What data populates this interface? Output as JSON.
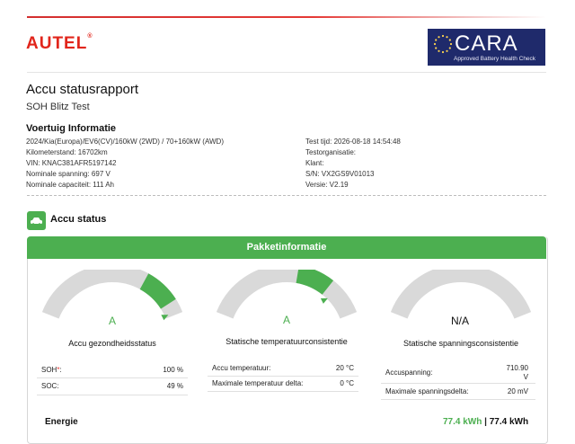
{
  "brand": {
    "logo_text": "AUTEL",
    "logo_mark": "®"
  },
  "badge": {
    "name": "CARA",
    "tagline": "Approved Battery Health Check"
  },
  "report": {
    "title": "Accu statusrapport",
    "subtitle": "SOH Blitz Test"
  },
  "vehicle": {
    "heading": "Voertuig Informatie",
    "left": [
      "2024/Kia(Europa)/EV6(CV)/160kW (2WD) / 70+160kW (AWD)",
      "Kilometerstand: 16702km",
      "VIN: KNAC381AFR5197142",
      "Nominale spanning: 697 V",
      "Nominale capaciteit: 111 Ah"
    ],
    "right": [
      "Test tijd: 2026-08-18 14:54:48",
      "Testorganisatie:",
      "Klant:",
      "S/N: VX2GS9V01013",
      "Versie: V2.19"
    ]
  },
  "accu_status": {
    "label": "Accu status",
    "icon": "battery-car-icon"
  },
  "pakket": {
    "header": "Pakketinformatie"
  },
  "gauges": [
    {
      "value": "A",
      "label": "Accu gezondheidsstatus",
      "level": 0.92
    },
    {
      "value": "A",
      "label": "Statische temperatuurconsistentie",
      "level": 0.78
    },
    {
      "value": "N/A",
      "label": "Statische spanningsconsistentie",
      "level": null
    }
  ],
  "tables": {
    "health": [
      {
        "key": "SOH",
        "star": "*",
        "suffix": ":",
        "value": "100 %"
      },
      {
        "key": "SOC:",
        "star": "",
        "suffix": "",
        "value": "49 %"
      }
    ],
    "temp": [
      {
        "key": "Accu temperatuur:",
        "value": "20 °C"
      },
      {
        "key": "Maximale temperatuur delta:",
        "value": "0 °C"
      }
    ],
    "voltage": [
      {
        "key": "Accuspanning:",
        "value_line1": "710.90",
        "value_line2": "V"
      },
      {
        "key": "Maximale spanningsdelta:",
        "value": "20 mV"
      }
    ]
  },
  "energy": {
    "label": "Energie",
    "value_green": "77.4 kWh",
    "separator": " | ",
    "value_black": "77.4 kWh"
  },
  "colors": {
    "brand_red": "#e1251b",
    "accent_green": "#4caf50",
    "badge_blue": "#1f2a6b",
    "gauge_gray": "#d9d9d9"
  }
}
